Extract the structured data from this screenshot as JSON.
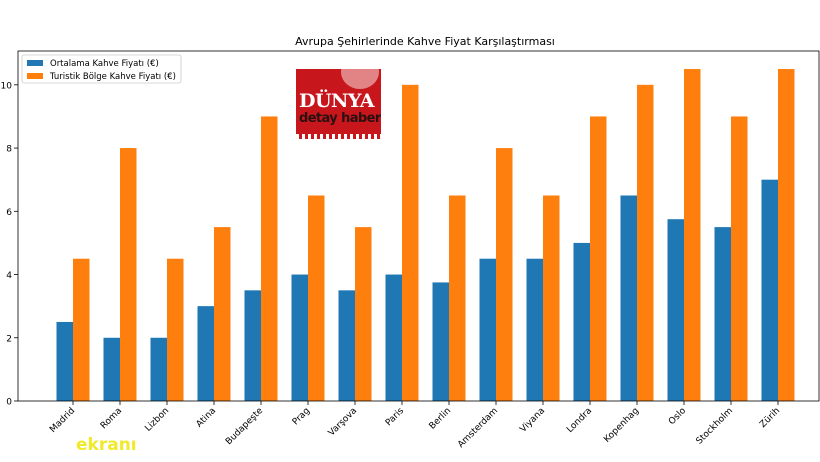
{
  "chart_data": {
    "type": "bar",
    "title": "Avrupa Şehirlerinde Kahve Fiyat Karşılaştırması",
    "xlabel": "",
    "ylabel": "",
    "ylim": [
      0,
      11.07
    ],
    "yticks": [
      0,
      2,
      4,
      6,
      8,
      10
    ],
    "grid": false,
    "legend": "top-left",
    "categories": [
      "Madrid",
      "Roma",
      "Lizbon",
      "Atina",
      "Budapeşte",
      "Prag",
      "Varşova",
      "Paris",
      "Berlin",
      "Amsterdam",
      "Viyana",
      "Londra",
      "Kopenhag",
      "Oslo",
      "Stockholm",
      "Zürih"
    ],
    "series": [
      {
        "name": "Ortalama Kahve Fiyatı (€)",
        "color": "#1f77b4",
        "values": [
          2.5,
          2,
          2,
          3,
          3.5,
          4,
          3.5,
          4,
          3.75,
          4.5,
          4.5,
          5,
          6.5,
          5.75,
          5.5,
          7
        ]
      },
      {
        "name": "Turistik Bölge Kahve Fiyatı (€)",
        "color": "#ff7f0e",
        "values": [
          4.5,
          8,
          4.5,
          5.5,
          9,
          6.5,
          5.5,
          10,
          6.5,
          8,
          6.5,
          9,
          10,
          10.5,
          9,
          10.5
        ]
      }
    ]
  },
  "logos": {
    "publisher": "DÜNYA detay haber",
    "watermark": "ekranı"
  }
}
